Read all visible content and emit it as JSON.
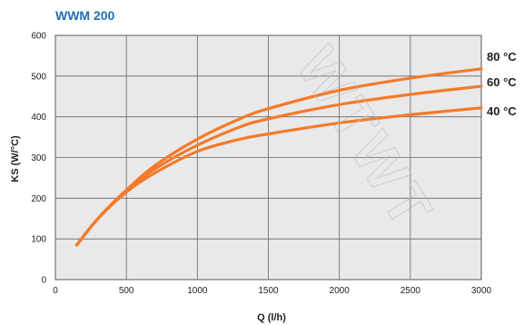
{
  "watermark": "WTWT",
  "chart_data": {
    "type": "line",
    "title": "WWM 200",
    "title_color": "#1f6fb5",
    "xlabel": "Q (l/h)",
    "ylabel": "KS (W/°C)",
    "xlim": [
      0,
      3000
    ],
    "ylim": [
      0,
      600
    ],
    "xticks": [
      0,
      500,
      1000,
      1500,
      2000,
      2500,
      3000
    ],
    "yticks": [
      0,
      100,
      200,
      300,
      400,
      500,
      600
    ],
    "grid": true,
    "plot_background": "#e9e9e9",
    "line_color": "#f47a2a",
    "series": [
      {
        "name": "80 °C",
        "x": [
          150,
          300,
          500,
          700,
          1000,
          1300,
          1500,
          2000,
          2500,
          3000
        ],
        "y": [
          85,
          150,
          220,
          280,
          345,
          395,
          420,
          465,
          495,
          518
        ]
      },
      {
        "name": "60 °C",
        "x": [
          150,
          300,
          500,
          700,
          1000,
          1300,
          1500,
          2000,
          2500,
          3000
        ],
        "y": [
          85,
          150,
          220,
          272,
          330,
          375,
          395,
          430,
          455,
          475
        ]
      },
      {
        "name": "40 °C",
        "x": [
          150,
          300,
          500,
          700,
          1000,
          1300,
          1500,
          2000,
          2500,
          3000
        ],
        "y": [
          85,
          150,
          215,
          262,
          315,
          345,
          358,
          385,
          405,
          422
        ]
      }
    ]
  }
}
